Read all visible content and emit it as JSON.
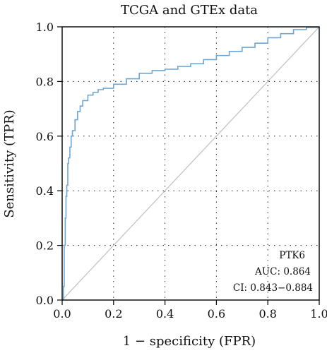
{
  "chart_data": {
    "type": "line",
    "title": "TCGA and GTEx data",
    "xlabel": "1 − specificity (FPR)",
    "ylabel": "Sensitivity (TPR)",
    "xlim": [
      0.0,
      1.0
    ],
    "ylim": [
      0.0,
      1.0
    ],
    "x_ticks": [
      "0.0",
      "0.2",
      "0.4",
      "0.6",
      "0.8",
      "1.0"
    ],
    "y_ticks": [
      "0.0",
      "0.2",
      "0.4",
      "0.6",
      "0.8",
      "1.0"
    ],
    "grid": "dotted",
    "series": [
      {
        "color": "#6ea6d3",
        "x": [
          0.0,
          0.005,
          0.008,
          0.012,
          0.015,
          0.018,
          0.022,
          0.025,
          0.03,
          0.035,
          0.04,
          0.05,
          0.06,
          0.07,
          0.08,
          0.1,
          0.12,
          0.14,
          0.16,
          0.2,
          0.25,
          0.3,
          0.35,
          0.4,
          0.45,
          0.5,
          0.55,
          0.6,
          0.65,
          0.7,
          0.75,
          0.8,
          0.85,
          0.9,
          0.95,
          1.0
        ],
        "y": [
          0.0,
          0.05,
          0.2,
          0.3,
          0.38,
          0.42,
          0.5,
          0.52,
          0.56,
          0.6,
          0.62,
          0.66,
          0.69,
          0.71,
          0.73,
          0.75,
          0.76,
          0.77,
          0.775,
          0.79,
          0.81,
          0.83,
          0.84,
          0.845,
          0.855,
          0.865,
          0.88,
          0.895,
          0.91,
          0.925,
          0.94,
          0.96,
          0.975,
          0.99,
          0.998,
          1.0
        ]
      }
    ],
    "diagonal_color": "#c4c4c4",
    "annotations": [
      "PTK6",
      "AUC: 0.864",
      "CI: 0.843−0.884"
    ]
  }
}
